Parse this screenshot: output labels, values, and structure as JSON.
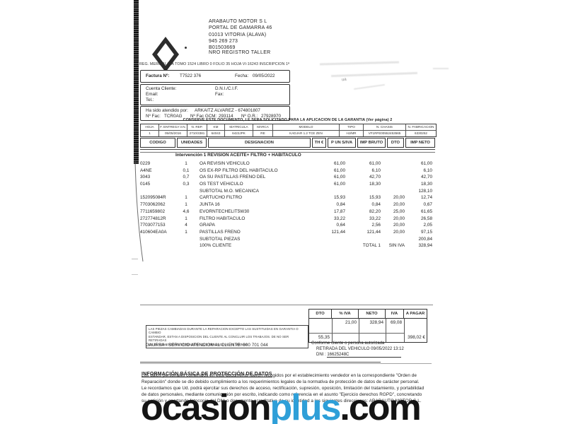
{
  "colors": {
    "accent_blue": "#2e9fd8",
    "ink": "#262626"
  },
  "brand": {
    "name": "RENAULT"
  },
  "dealer": {
    "lines": [
      "ARABAUTO MOTOR S L",
      "PORTAL DE GAMARRA 46",
      "01013 VITORIA (ALAVA)",
      "945 269 273",
      "B01503669"
    ],
    "registro_taller": "NRO REGISTRO TALLER",
    "reg_merc": "REG. MERC ALAVA TOMO 1524 LIBRO 0 FOLIO 35 HOJA VI-16243 INSCRIPCION 1ª"
  },
  "invoice": {
    "factura_label": "Factura Nº:",
    "factura_num": "T7522 376",
    "fecha_label": "Fecha:",
    "fecha_value": "09/05/2022"
  },
  "client": {
    "cuenta_label": "Cuenta Cliente:",
    "dni_label": "D.N.I./C.I.F.",
    "email_label": "Email:",
    "fax_label": "Fax:",
    "tel_label": "Tel.:"
  },
  "attended": {
    "label": "Ha sido atendido por:",
    "value": "ARKAITZ ALVAREZ - 674801807",
    "fac_label": "Nº Fac:",
    "fac_value": "TCR0AG",
    "gcm_label": "Nº Fac GCM:",
    "gcm_value": "293114",
    "or_label": "Nº O.R.:",
    "or_value": "27928970"
  },
  "conserve_note": "CONSERVE ESTE DOCUMENTO, LE SERA SOLICITADO PARA LA APLICACION DE LA GARANTIA (Ver página)   2",
  "vehicle": {
    "headers": [
      "HOJA",
      "F. ENTREGA V.N.",
      "N. REP.",
      "KM",
      "MATRICULA",
      "MARCA",
      "MODELO",
      "TIPO",
      "N. CHASIS",
      "N. FABRICACION"
    ],
    "values": [
      "1",
      "05/05/2016",
      "2710/3381",
      "64043",
      "6422JPK",
      "RE",
      "KADJAR 1.2 TCE ZEN",
      "HJ/MR",
      "VF1RFE00552453565",
      "6330252"
    ]
  },
  "items": {
    "headers": [
      "CODIGO",
      "UNIDADES",
      "DESIGNACION",
      "TH €",
      "P UN S/IVA",
      "IMP BRUTO",
      "DTO",
      "IMP NETO"
    ],
    "intervention": "Intervención  1  REVISION ACEITE+ FILTRO + HABITACULO",
    "rows": [
      {
        "code": "0229",
        "units": "1",
        "desc": "OA REVISIN VEHíCULO",
        "pun": "61,00",
        "bruto": "61,00",
        "dto": "",
        "neto": "61,00"
      },
      {
        "code": "A4NE",
        "units": "0,1",
        "desc": "OS EX-RP FILTRO DEL HABITACULO",
        "pun": "61,00",
        "bruto": "6,10",
        "dto": "",
        "neto": "6,10"
      },
      {
        "code": "3043",
        "units": "0,7",
        "desc": "OA SU PASTILLAS FRENO DEL",
        "pun": "61,00",
        "bruto": "42,70",
        "dto": "",
        "neto": "42,70"
      },
      {
        "code": "0145",
        "units": "0,3",
        "desc": "OS TEST VEHíCULO",
        "pun": "61,00",
        "bruto": "18,30",
        "dto": "",
        "neto": "18,30"
      },
      {
        "code": "",
        "units": "",
        "desc": "SUBTOTAL  M.O. MECANICA",
        "pun": "",
        "bruto": "",
        "dto": "",
        "neto": "128,10"
      },
      {
        "code": "152095084R",
        "units": "1",
        "desc": "CARTUCHO FILTRO",
        "pun": "15,93",
        "bruto": "15,93",
        "dto": "20,00",
        "neto": "12,74"
      },
      {
        "code": "7703062062",
        "units": "1",
        "desc": "JUNTA 16",
        "pun": "0,84",
        "bruto": "0,84",
        "dto": "20,00",
        "neto": "0,67"
      },
      {
        "code": "7711659802",
        "units": "4,6",
        "desc": "EVORNTECHELIT5W30",
        "pun": "17,87",
        "bruto": "82,20",
        "dto": "25,00",
        "neto": "61,65"
      },
      {
        "code": "272774812R",
        "units": "1",
        "desc": "FILTRO HABITACULO",
        "pun": "33,22",
        "bruto": "33,22",
        "dto": "20,00",
        "neto": "26,58"
      },
      {
        "code": "7703077153",
        "units": "4",
        "desc": "GRAPA",
        "pun": "0,64",
        "bruto": "2,56",
        "dto": "20,00",
        "neto": "2,05"
      },
      {
        "code": "410604EA0A",
        "units": "1",
        "desc": "PASTILLAS FRENO",
        "pun": "121,44",
        "bruto": "121,44",
        "dto": "20,00",
        "neto": "97,15"
      },
      {
        "code": "",
        "units": "",
        "desc": "SUBTOTAL  PIEZAS",
        "pun": "",
        "bruto": "",
        "dto": "",
        "neto": "200,84"
      },
      {
        "code": "",
        "units": "",
        "desc": "100% CLIENTE",
        "pun": "",
        "bruto": "TOTAL   1",
        "dto": "SIN IVA",
        "neto": "328,94"
      }
    ]
  },
  "summary": {
    "headers": [
      "DTO",
      "% IVA",
      "NETO",
      "IVA",
      "A PAGAR"
    ],
    "iva_pct": "21,00",
    "neto": "328,94",
    "iva": "69,08",
    "dto": "55,35",
    "a_pagar": "398,02 €"
  },
  "legal": {
    "lines": [
      "LAS PIEZAS CAMBIADAS DURANTE LA REPARACION EXCEPTO LAS SUSTITUIDAS EN GARANTIA O CAMBIO",
      "ESTANDAR, ESTAN A DISPOSICION DEL CLIENTE AL CONCLUIR LOS TRABAJOS. DE NO SER RETIRADAS",
      "EN EL MOMENTO SE ENTENDERA QUE RENUNCIA A LAS MISMAS."
    ],
    "gaursa": "GAURSA - SERVICIO ATENCION AL CLIENTE: 900 701 044",
    "conforme": "Conforme cliente o persona autorizada",
    "retirada": "RETIRADA DEL VEHICULO   09/05/2022 13:12",
    "dni_label": "DNI :",
    "dni_value": "16625248C"
  },
  "rgpd": {
    "title": "INFORMACIÓN BÁSICA DE PROTECCIÓN DE DATOS",
    "lines": [
      "Los datos personales contenidos en este documento fueron recogidos por el establecimiento vendedor en la correspondiente \"Orden de",
      "Reparación\" donde se dio debido cumplimiento a los requerimientos legales de la normativa de protección de datos de carácter personal.",
      "Le recordamos que Ud. podrá ejercitar sus derechos de acceso, rectificación, supresión, oposición, limitación del tratamiento, y portabilidad",
      "de datos personales, mediante comunicación por escrito, indicando como referencia en el asunto \"Ejercicio derechos RGPD\", concretando",
      "su petición y aportando fotocopia del DNI o documento acreditativo de su identidad a las siguientes direcciones: ARABAUTO MOTOR S.L."
    ]
  },
  "watermark": {
    "left": "ocasion",
    "mid": "plus",
    "right": ".com"
  },
  "ghost": {
    "mark": "ua"
  }
}
